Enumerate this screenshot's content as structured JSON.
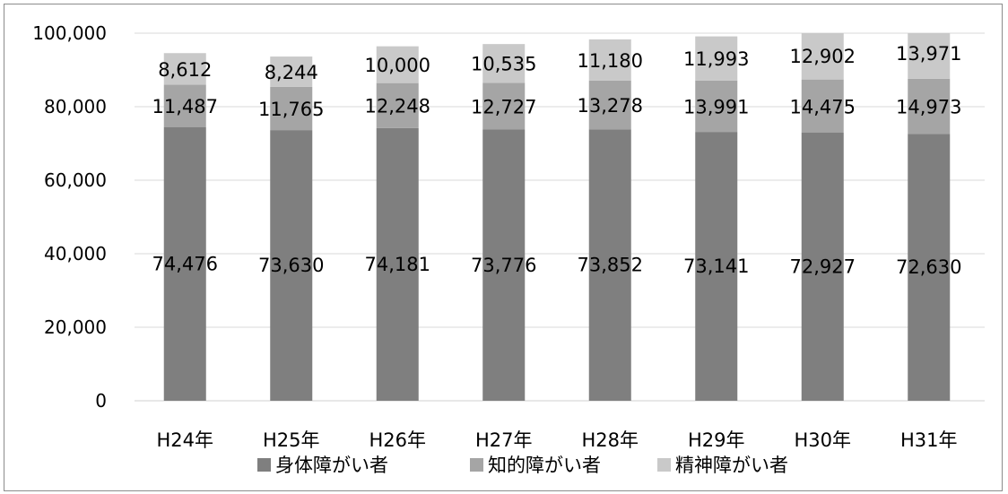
{
  "chart_data": {
    "type": "bar",
    "stacked": true,
    "categories": [
      "H24年",
      "H25年",
      "H26年",
      "H27年",
      "H28年",
      "H29年",
      "H30年",
      "H31年"
    ],
    "series": [
      {
        "name": "身体障がい者",
        "color": "#7f7f7f",
        "values": [
          74476,
          73630,
          74181,
          73776,
          73852,
          73141,
          72927,
          72630
        ]
      },
      {
        "name": "知的障がい者",
        "color": "#a5a5a5",
        "values": [
          11487,
          11765,
          12248,
          12727,
          13278,
          13991,
          14475,
          14973
        ]
      },
      {
        "name": "精神障がい者",
        "color": "#c9c9c9",
        "values": [
          8612,
          8244,
          10000,
          10535,
          11180,
          11993,
          12902,
          13971
        ]
      }
    ],
    "data_labels": [
      [
        "74,476",
        "73,630",
        "74,181",
        "73,776",
        "73,852",
        "73,141",
        "72,927",
        "72,630"
      ],
      [
        "11,487",
        "11,765",
        "12,248",
        "12,727",
        "13,278",
        "13,991",
        "14,475",
        "14,973"
      ],
      [
        "8,612",
        "8,244",
        "10,000",
        "10,535",
        "11,180",
        "11,993",
        "12,902",
        "13,971"
      ]
    ],
    "ylim": [
      0,
      100000
    ],
    "yticks": [
      0,
      20000,
      40000,
      60000,
      80000,
      100000
    ],
    "ytick_labels": [
      "0",
      "20,000",
      "40,000",
      "60,000",
      "80,000",
      "100,000"
    ],
    "grid": true,
    "legend": "bottom",
    "title": "",
    "xlabel": "",
    "ylabel": ""
  }
}
